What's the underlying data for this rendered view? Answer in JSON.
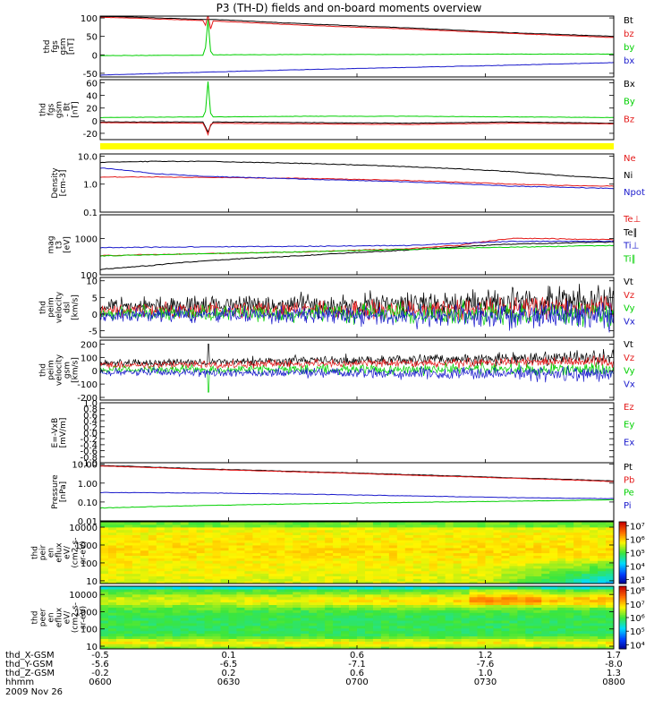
{
  "title": "P3 (TH-D) fields and on-board moments overview",
  "colors": {
    "black": "#000000",
    "red": "#e41a1a",
    "green": "#00d000",
    "blue": "#1a1acc",
    "yellow": "#ffff00"
  },
  "chart_data": [
    {
      "type": "line",
      "id": "fgs",
      "ylabel": [
        "thd",
        "fgs",
        "gsm",
        "[nT]"
      ],
      "ylim": [
        -60,
        105
      ],
      "yticks": [
        "100",
        "50",
        "0",
        "-50"
      ],
      "ytick_values": [
        100,
        50,
        0,
        -50
      ],
      "series": [
        {
          "name": "Bt",
          "color": "#000000",
          "x": [
            0,
            0.05,
            0.2,
            0.21,
            0.22,
            0.4,
            0.6,
            0.8,
            1.0
          ],
          "y": [
            104,
            103,
            96,
            96,
            96,
            84,
            73,
            60,
            50
          ]
        },
        {
          "name": "bz",
          "color": "#e41a1a",
          "x": [
            0,
            0.05,
            0.2,
            0.205,
            0.21,
            0.215,
            0.22,
            0.4,
            0.6,
            0.8,
            1.0
          ],
          "y": [
            102,
            100,
            93,
            80,
            108,
            70,
            92,
            80,
            70,
            58,
            47
          ]
        },
        {
          "name": "by",
          "color": "#00d000",
          "x": [
            0,
            0.2,
            0.205,
            0.21,
            0.215,
            0.22,
            0.4,
            0.6,
            0.8,
            1.0
          ],
          "y": [
            -2,
            -1,
            20,
            95,
            10,
            0,
            1,
            1,
            2,
            2
          ]
        },
        {
          "name": "bx",
          "color": "#1a1acc",
          "x": [
            0,
            0.1,
            0.2,
            0.4,
            0.6,
            0.8,
            1.0
          ],
          "y": [
            -55,
            -51,
            -47,
            -40,
            -34,
            -28,
            -21
          ]
        }
      ]
    },
    {
      "type": "line",
      "id": "fgs_dsl",
      "ylabel": [
        "thd",
        "fgs",
        "gsm",
        "- Bt",
        "[nT]"
      ],
      "ylim": [
        -30,
        65
      ],
      "yticks": [
        "60",
        "40",
        "20",
        "0",
        "-20"
      ],
      "ytick_values": [
        60,
        40,
        20,
        0,
        -20
      ],
      "series": [
        {
          "name": "Bx",
          "color": "#000000",
          "x": [
            0,
            0.2,
            0.205,
            0.21,
            0.215,
            0.22,
            0.4,
            0.6,
            0.8,
            1.0
          ],
          "y": [
            -2,
            -2,
            -10,
            -18,
            -8,
            -2,
            -3,
            -4,
            -2,
            -4
          ]
        },
        {
          "name": "By",
          "color": "#00d000",
          "x": [
            0,
            0.2,
            0.205,
            0.21,
            0.215,
            0.22,
            0.4,
            0.6,
            0.8,
            1.0
          ],
          "y": [
            5,
            6,
            15,
            62,
            12,
            6,
            7,
            7,
            6,
            5
          ]
        },
        {
          "name": "Bz",
          "color": "#e41a1a",
          "x": [
            0,
            0.2,
            0.205,
            0.21,
            0.215,
            0.22,
            0.4,
            0.6,
            0.8,
            1.0
          ],
          "y": [
            -3,
            -4,
            -12,
            -22,
            -6,
            -4,
            -5,
            -6,
            -4,
            -5
          ]
        }
      ]
    },
    {
      "type": "line",
      "id": "density",
      "ylabel": [
        "Density",
        "[cm-3]"
      ],
      "ylim": [
        0.1,
        12
      ],
      "log": true,
      "yticks": [
        "10.0",
        "1.0",
        "0.1"
      ],
      "ytick_values": [
        10,
        1,
        0.1
      ],
      "series": [
        {
          "name": "Ne",
          "color": "#e41a1a",
          "x": [
            0,
            0.1,
            0.2,
            0.4,
            0.6,
            0.8,
            0.9,
            1.0
          ],
          "y": [
            1.8,
            1.8,
            1.75,
            1.6,
            1.35,
            1.0,
            0.9,
            0.85
          ]
        },
        {
          "name": "Ni",
          "color": "#000000",
          "x": [
            0,
            0.1,
            0.2,
            0.4,
            0.6,
            0.8,
            0.9,
            1.0
          ],
          "y": [
            6.0,
            6.5,
            6.5,
            5.5,
            4.2,
            2.8,
            2.0,
            1.6
          ]
        },
        {
          "name": "Npot",
          "color": "#1a1acc",
          "x": [
            0,
            0.1,
            0.2,
            0.4,
            0.6,
            0.8,
            1.0
          ],
          "y": [
            3.8,
            2.4,
            1.9,
            1.5,
            1.2,
            0.85,
            0.7
          ]
        }
      ]
    },
    {
      "type": "line",
      "id": "temperature",
      "ylabel": [
        "mag",
        "t3",
        "[eV]"
      ],
      "ylim": [
        100,
        4500
      ],
      "log": true,
      "yticks": [
        "1000",
        "100"
      ],
      "ytick_values": [
        1000,
        100
      ],
      "series": [
        {
          "name": "Te⊥",
          "color": "#e41a1a",
          "x": [
            0,
            0.2,
            0.4,
            0.6,
            0.7,
            0.8,
            0.85,
            1.0
          ],
          "y": [
            340,
            380,
            430,
            520,
            650,
            1000,
            1000,
            920
          ]
        },
        {
          "name": "Te∥",
          "color": "#000000",
          "x": [
            0,
            0.1,
            0.2,
            0.4,
            0.6,
            0.8,
            1.0
          ],
          "y": [
            140,
            180,
            240,
            340,
            480,
            700,
            800
          ]
        },
        {
          "name": "Ti⊥",
          "color": "#1a1acc",
          "x": [
            0,
            0.2,
            0.4,
            0.6,
            0.8,
            1.0
          ],
          "y": [
            560,
            590,
            610,
            640,
            830,
            840
          ]
        },
        {
          "name": "Ti∥",
          "color": "#00d000",
          "x": [
            0,
            0.2,
            0.4,
            0.6,
            0.8,
            1.0
          ],
          "y": [
            330,
            380,
            430,
            500,
            580,
            640
          ]
        }
      ]
    },
    {
      "type": "line",
      "id": "peim_dsl",
      "ylabel": [
        "thd",
        "peim",
        "velocity",
        "dsl",
        "[km/s]"
      ],
      "ylim": [
        -7,
        11
      ],
      "yticks": [
        "10",
        "5",
        "0",
        "-5"
      ],
      "ytick_values": [
        10,
        5,
        0,
        -5
      ],
      "noisy": true,
      "series": [
        {
          "name": "Vt",
          "color": "#000000",
          "x": [
            0,
            1
          ],
          "y": [
            2.2,
            3.8
          ],
          "noise": [
            1.6,
            3.4
          ],
          "seed": 11
        },
        {
          "name": "Vz",
          "color": "#e41a1a",
          "x": [
            0,
            1
          ],
          "y": [
            1.0,
            1.5
          ],
          "noise": [
            1.4,
            2.4
          ],
          "seed": 23
        },
        {
          "name": "Vy",
          "color": "#00d000",
          "x": [
            0,
            1
          ],
          "y": [
            0.2,
            0.2
          ],
          "noise": [
            1.3,
            2.6
          ],
          "seed": 37
        },
        {
          "name": "Vx",
          "color": "#1a1acc",
          "x": [
            0,
            1
          ],
          "y": [
            -0.3,
            -0.5
          ],
          "noise": [
            1.3,
            2.8
          ],
          "seed": 51
        }
      ]
    },
    {
      "type": "line",
      "id": "peim_gsm",
      "ylabel": [
        "thd",
        "peim",
        "velocity",
        "gsm",
        "[km/s]"
      ],
      "ylim": [
        -220,
        230
      ],
      "yticks": [
        "200",
        "100",
        "0",
        "-100",
        "-200"
      ],
      "ytick_values": [
        200,
        100,
        0,
        -100,
        -200
      ],
      "noisy": true,
      "series": [
        {
          "name": "Vt",
          "color": "#000000",
          "x": [
            0,
            1
          ],
          "y": [
            55,
            100
          ],
          "noise": [
            18,
            35
          ],
          "seed": 61,
          "spike": [
            0.211,
            200
          ]
        },
        {
          "name": "Vz",
          "color": "#e41a1a",
          "x": [
            0,
            1
          ],
          "y": [
            40,
            70
          ],
          "noise": [
            16,
            28
          ],
          "seed": 73
        },
        {
          "name": "Vy",
          "color": "#00d000",
          "x": [
            0,
            1
          ],
          "y": [
            10,
            10
          ],
          "noise": [
            18,
            34
          ],
          "seed": 89,
          "spike": [
            0.211,
            -160
          ]
        },
        {
          "name": "Vx",
          "color": "#1a1acc",
          "x": [
            0,
            1
          ],
          "y": [
            -10,
            -25
          ],
          "noise": [
            18,
            38
          ],
          "seed": 97
        }
      ]
    },
    {
      "type": "line",
      "id": "efield",
      "ylabel": [
        "E=-VxB",
        "[mV/m]"
      ],
      "ylim": [
        -1,
        1
      ],
      "yticks": [
        "1.0",
        "0.8",
        "0.6",
        "0.4",
        "0.2",
        "0.0",
        "-0.2",
        "-0.4",
        "-0.6",
        "-0.8",
        "-1.0"
      ],
      "ytick_values": [
        1.0,
        0.8,
        0.6,
        0.4,
        0.2,
        0.0,
        -0.2,
        -0.4,
        -0.6,
        -0.8,
        -1.0
      ],
      "series": [
        {
          "name": "Ez",
          "color": "#e41a1a",
          "x": [],
          "y": []
        },
        {
          "name": "Ey",
          "color": "#00d000",
          "x": [],
          "y": []
        },
        {
          "name": "Ex",
          "color": "#1a1acc",
          "x": [],
          "y": []
        }
      ]
    },
    {
      "type": "line",
      "id": "pressure",
      "ylabel": [
        "Pressure",
        "[nPa]"
      ],
      "ylim": [
        0.01,
        12
      ],
      "log": true,
      "yticks": [
        "10.00",
        "1.00",
        "0.10",
        "0.01"
      ],
      "ytick_values": [
        10,
        1,
        0.1,
        0.01
      ],
      "series": [
        {
          "name": "Pt",
          "color": "#000000",
          "x": [
            0,
            0.2,
            0.4,
            0.6,
            0.8,
            1.0
          ],
          "y": [
            8.5,
            5.6,
            4.0,
            2.8,
            1.9,
            1.3
          ]
        },
        {
          "name": "Pb",
          "color": "#e41a1a",
          "x": [
            0,
            0.2,
            0.4,
            0.6,
            0.8,
            1.0
          ],
          "y": [
            8.0,
            5.3,
            3.8,
            2.6,
            1.8,
            1.2
          ]
        },
        {
          "name": "Pe",
          "color": "#00d000",
          "x": [
            0,
            0.2,
            0.4,
            0.6,
            0.8,
            1.0
          ],
          "y": [
            0.048,
            0.065,
            0.08,
            0.095,
            0.11,
            0.13
          ]
        },
        {
          "name": "Pi",
          "color": "#1a1acc",
          "x": [
            0,
            0.2,
            0.4,
            0.6,
            0.8,
            1.0
          ],
          "y": [
            0.32,
            0.3,
            0.26,
            0.21,
            0.17,
            0.15
          ]
        }
      ]
    },
    {
      "type": "heatmap",
      "id": "peir_spec",
      "ylabel": [
        "thd",
        "peir",
        "en",
        "eflux",
        "eV/",
        "(cm2-s-",
        "sr-eV)"
      ],
      "ylim": [
        7,
        20000
      ],
      "log": true,
      "yticks": [
        "10000",
        "1000",
        "100",
        "10"
      ],
      "ytick_values": [
        10000,
        1000,
        100,
        10
      ],
      "colorbar_ticks": [
        "10⁷",
        "10⁶",
        "10⁵",
        "10⁴",
        "10³"
      ],
      "colorbar_range": [
        2.7,
        7.3
      ],
      "colorbar_tick_values": [
        7,
        6,
        5,
        4,
        3
      ]
    },
    {
      "type": "heatmap",
      "id": "peer_spec",
      "ylabel": [
        "thd",
        "peer",
        "en",
        "eflux",
        "eV/",
        "(cm2-s-",
        "sr-eV)"
      ],
      "ylim": [
        7,
        30000
      ],
      "log": true,
      "yticks": [
        "10000",
        "1000",
        "100",
        "10"
      ],
      "ytick_values": [
        10000,
        1000,
        100,
        10
      ],
      "colorbar_ticks": [
        "10⁸",
        "10⁷",
        "10⁶",
        "10⁵",
        "10⁴"
      ],
      "colorbar_range": [
        3.7,
        8.3
      ],
      "colorbar_tick_values": [
        8,
        7,
        6,
        5,
        4
      ]
    }
  ],
  "yellow_bar": true,
  "xaxis": {
    "row_labels": [
      "thd_X-GSM",
      "thd_Y-GSM",
      "thd_Z-GSM",
      "hhmm",
      "2009 Nov 26"
    ],
    "columns": [
      {
        "x": 0.0,
        "values": [
          "-0.5",
          "-5.6",
          "-0.2",
          "0600"
        ]
      },
      {
        "x": 0.25,
        "values": [
          "0.1",
          "-6.5",
          "0.2",
          "0630"
        ]
      },
      {
        "x": 0.5,
        "values": [
          "0.6",
          "-7.1",
          "0.6",
          "0700"
        ]
      },
      {
        "x": 0.75,
        "values": [
          "1.2",
          "-7.6",
          "1.0",
          "0730"
        ]
      },
      {
        "x": 1.0,
        "values": [
          "1.7",
          "-8.0",
          "1.3",
          "0800"
        ]
      }
    ]
  }
}
